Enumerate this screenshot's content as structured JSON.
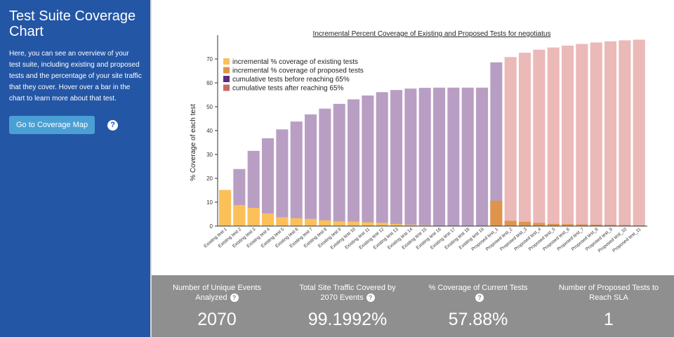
{
  "sidebar": {
    "title": "Test Suite Coverage Chart",
    "description": "Here, you can see an overview of your test suite, including existing and proposed tests and the percentage of your site traffic that they cover. Hover over a bar in the chart to learn more about that test.",
    "button_label": "Go to Coverage Map",
    "help_icon": "?"
  },
  "colors": {
    "existing": "#fcc059",
    "proposed": "#e0944b",
    "before65": "#b99ec4",
    "after65": "#eab9b8",
    "sidebar": "#2456a6",
    "button": "#4a9fd5",
    "stats_bg": "#8f8f8f"
  },
  "chart_data": {
    "type": "bar",
    "title": "Incremental Percent Coverage of Existing and Proposed Tests for negotiatus",
    "ylabel": "% Coverage of each test",
    "xlabel": "",
    "ylim": [
      0,
      80
    ],
    "yticks": [
      "0",
      "10",
      "20",
      "30",
      "40",
      "50",
      "60",
      "70"
    ],
    "legend": [
      {
        "label": "incremental % coverage of existing tests",
        "key": "existing"
      },
      {
        "label": "incremental % coverage of proposed tests",
        "key": "proposed"
      },
      {
        "label": "cumulative tests before reaching 65%",
        "key": "before65"
      },
      {
        "label": "cumulative tests after reaching 65%",
        "key": "after65"
      }
    ],
    "categories": [
      "Existing test 1",
      "Existing test 2",
      "Existing test 3",
      "Existing test 4",
      "Existing test 5",
      "Existing test 6",
      "Existing test 7",
      "Existing test 8",
      "Existing test 9",
      "Existing test 10",
      "Existing test 11",
      "Existing test 12",
      "Existing test 13",
      "Existing test 14",
      "Existing test 15",
      "Existing test 16",
      "Existing test 17",
      "Existing test 18",
      "Existing test 19",
      "Proposed test_1",
      "Proposed test_2",
      "Proposed test_3",
      "Proposed test_4",
      "Proposed test_5",
      "Proposed test_6",
      "Proposed test_7",
      "Proposed test_8",
      "Proposed test_9",
      "Proposed test_10",
      "Proposed test_11"
    ],
    "series": [
      {
        "name": "incremental",
        "values": [
          15.1,
          8.8,
          7.6,
          5.3,
          3.7,
          3.3,
          3.0,
          2.4,
          2.0,
          1.9,
          1.6,
          1.4,
          0.9,
          0.6,
          0.4,
          0.1,
          0.05,
          0.02,
          0.01,
          10.6,
          2.2,
          1.8,
          1.3,
          0.9,
          0.8,
          0.7,
          0.6,
          0.5,
          0.4,
          0.3
        ]
      },
      {
        "name": "cumulative",
        "values": [
          15.1,
          23.9,
          31.5,
          36.8,
          40.5,
          43.8,
          46.8,
          49.2,
          51.2,
          53.1,
          54.7,
          56.1,
          57.0,
          57.6,
          57.9,
          58.0,
          58.0,
          58.0,
          58.0,
          68.6,
          70.8,
          72.6,
          73.9,
          74.8,
          75.6,
          76.3,
          76.9,
          77.4,
          77.8,
          78.1
        ]
      }
    ],
    "existing_count": 19,
    "threshold_index": 19
  },
  "stats": [
    {
      "label": "Number of Unique Events Analyzed",
      "value": "2070",
      "help": true
    },
    {
      "label": "Total Site Traffic Covered by 2070 Events",
      "value": "99.1992%",
      "help": true
    },
    {
      "label": "% Coverage of Current Tests",
      "value": "57.88%",
      "help": true
    },
    {
      "label": "Number of Proposed Tests to Reach SLA",
      "value": "1",
      "help": false
    }
  ]
}
